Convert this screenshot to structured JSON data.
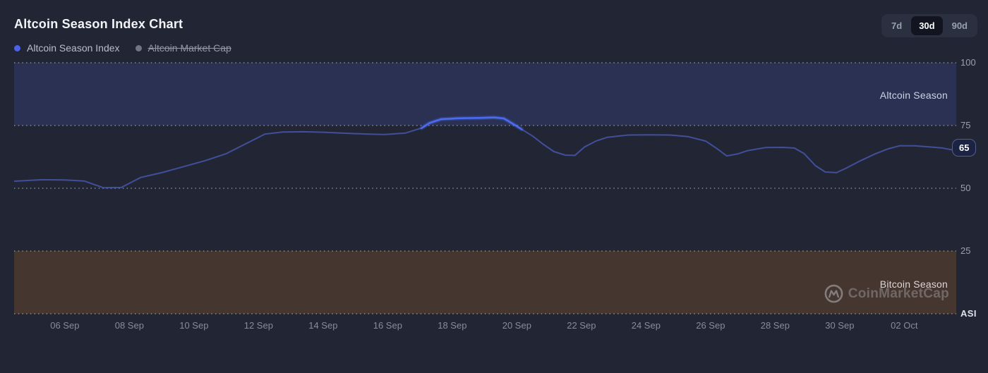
{
  "header": {
    "title": "Altcoin Season Index Chart"
  },
  "range_selector": {
    "options": [
      "7d",
      "30d",
      "90d"
    ],
    "selected": "30d"
  },
  "legend": [
    {
      "label": "Altcoin Season Index",
      "color": "#4a63e7",
      "active": true
    },
    {
      "label": "Altcoin Market Cap",
      "color": "#707684",
      "active": false
    }
  ],
  "bands": {
    "altcoin_label": "Altcoin Season",
    "bitcoin_label": "Bitcoin Season"
  },
  "watermark": {
    "text": "CoinMarketCap"
  },
  "axis": {
    "y_axis_name": "ASI",
    "current_value": "65"
  },
  "colors": {
    "background": "#222634",
    "accent_line": "#4b6bf3",
    "line_dim": "#4d60c4",
    "altcoin_band": "#2a3152",
    "bitcoin_band": "#453630",
    "grid_dot": "#cdd4e6",
    "badge_bg": "#1c2342",
    "badge_border": "#545e8c"
  },
  "chart_data": {
    "type": "line",
    "title": "Altcoin Season Index Chart",
    "ylim": [
      0,
      100
    ],
    "y_ticks": [
      100,
      75,
      50,
      25
    ],
    "grid_values": [
      100,
      75,
      50,
      25,
      0
    ],
    "x_domain_days": [
      0.43,
      29.61
    ],
    "x_ticks": [
      {
        "day": 2,
        "label": "06 Sep"
      },
      {
        "day": 4,
        "label": "08 Sep"
      },
      {
        "day": 6,
        "label": "10 Sep"
      },
      {
        "day": 8,
        "label": "12 Sep"
      },
      {
        "day": 10,
        "label": "14 Sep"
      },
      {
        "day": 12,
        "label": "16 Sep"
      },
      {
        "day": 14,
        "label": "18 Sep"
      },
      {
        "day": 16,
        "label": "20 Sep"
      },
      {
        "day": 18,
        "label": "22 Sep"
      },
      {
        "day": 20,
        "label": "24 Sep"
      },
      {
        "day": 22,
        "label": "26 Sep"
      },
      {
        "day": 24,
        "label": "28 Sep"
      },
      {
        "day": 26,
        "label": "30 Sep"
      },
      {
        "day": 28,
        "label": "02 Oct"
      }
    ],
    "bands": [
      {
        "label": "Altcoin Season",
        "from": 75,
        "to": 100
      },
      {
        "label": "Bitcoin Season",
        "from": 0,
        "to": 25
      }
    ],
    "highlight_range_days": [
      12.95,
      16.18
    ],
    "current_value": 65,
    "disabled_series": [
      "Altcoin Market Cap"
    ],
    "series": [
      {
        "name": "Altcoin Season Index",
        "points": [
          [
            0.43,
            52.8
          ],
          [
            1.3,
            53.4
          ],
          [
            2.0,
            53.3
          ],
          [
            2.6,
            52.9
          ],
          [
            3.2,
            50.2
          ],
          [
            3.75,
            50.3
          ],
          [
            4.35,
            54.3
          ],
          [
            5.0,
            56.2
          ],
          [
            5.65,
            58.5
          ],
          [
            6.35,
            61.0
          ],
          [
            7.0,
            63.8
          ],
          [
            7.65,
            68.0
          ],
          [
            8.2,
            71.6
          ],
          [
            8.75,
            72.4
          ],
          [
            9.4,
            72.5
          ],
          [
            10.05,
            72.3
          ],
          [
            10.7,
            71.9
          ],
          [
            11.35,
            71.6
          ],
          [
            11.9,
            71.4
          ],
          [
            12.55,
            72.0
          ],
          [
            13.05,
            74.0
          ],
          [
            13.3,
            76.0
          ],
          [
            13.65,
            77.5
          ],
          [
            14.2,
            77.9
          ],
          [
            14.85,
            78.0
          ],
          [
            15.3,
            78.2
          ],
          [
            15.6,
            77.8
          ],
          [
            15.9,
            75.5
          ],
          [
            16.15,
            73.5
          ],
          [
            16.5,
            70.7
          ],
          [
            16.8,
            67.7
          ],
          [
            17.15,
            64.6
          ],
          [
            17.5,
            63.2
          ],
          [
            17.8,
            63.1
          ],
          [
            18.1,
            66.5
          ],
          [
            18.45,
            68.8
          ],
          [
            18.8,
            70.3
          ],
          [
            19.45,
            71.2
          ],
          [
            20.1,
            71.3
          ],
          [
            20.75,
            71.2
          ],
          [
            21.3,
            70.6
          ],
          [
            21.85,
            68.8
          ],
          [
            22.2,
            65.8
          ],
          [
            22.5,
            62.9
          ],
          [
            22.85,
            63.7
          ],
          [
            23.15,
            65.0
          ],
          [
            23.7,
            66.2
          ],
          [
            24.25,
            66.3
          ],
          [
            24.6,
            66.0
          ],
          [
            24.9,
            63.8
          ],
          [
            25.25,
            59.0
          ],
          [
            25.55,
            56.5
          ],
          [
            25.9,
            56.2
          ],
          [
            26.2,
            58.0
          ],
          [
            26.65,
            61.0
          ],
          [
            27.1,
            63.7
          ],
          [
            27.5,
            65.7
          ],
          [
            27.85,
            66.9
          ],
          [
            28.3,
            66.9
          ],
          [
            28.75,
            66.5
          ],
          [
            29.15,
            66.1
          ],
          [
            29.61,
            65.0
          ]
        ]
      }
    ]
  }
}
